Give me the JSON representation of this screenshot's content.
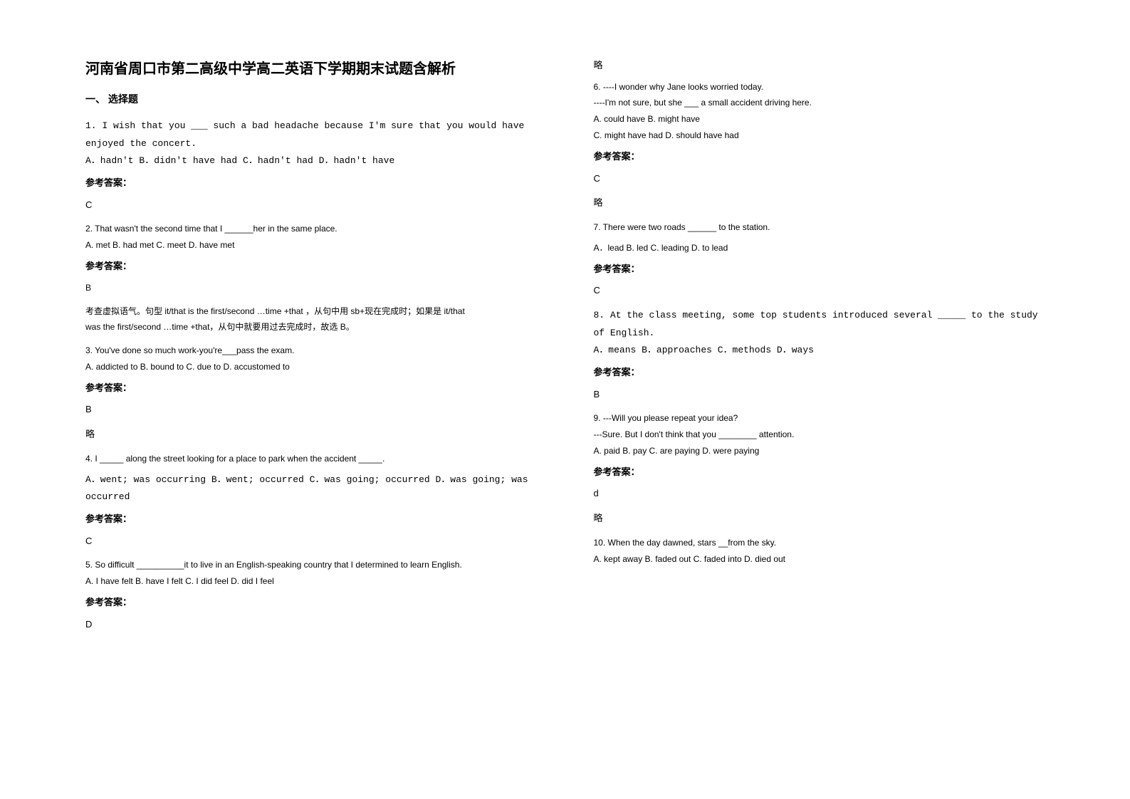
{
  "title": "河南省周口市第二高级中学高二英语下学期期末试题含解析",
  "section1_heading": "一、 选择题",
  "answer_label": "参考答案：",
  "略": "略",
  "left": {
    "q1": {
      "text": "1. I wish that you ___ such a bad headache because I'm sure that you would have enjoyed the concert.",
      "opts": "A．hadn't              B．didn't have had       C．hadn't had          D．hadn't have",
      "ans": "C"
    },
    "q2": {
      "text": "2. That wasn't the second time that I ______her in the same place.",
      "opts": "A. met   B. had met   C. meet   D. have met",
      "ans": "B",
      "note1": "考查虚拟语气。句型 it/that is the first/second …time +that ，从句中用 sb+现在完成时；如果是 it/that",
      "note2": "was the first/second …time +that，从句中就要用过去完成时，故选 B。"
    },
    "q3": {
      "text": "3. You've done so much work-you're___pass the exam.",
      "opts": "  A. addicted to    B. bound to    C. due to    D. accustomed to",
      "ans": "B",
      "note": "略"
    },
    "q4": {
      "text": "4. I _____ along the street looking for a place to park when the accident _____.",
      "opts": "A．went; was occurring   B．went; occurred            C．was going; occurred   D．was going; was occurred",
      "ans": "C"
    },
    "q5": {
      "text": "5. So difficult __________it to live in an English-speaking country that I determined to learn English.",
      "opts": "   A. I have felt            B. have I felt              C. I did feel              D. did I feel",
      "ans": "D"
    }
  },
  "right": {
    "top_note": "略",
    "q6": {
      "text": "6. ----I wonder why Jane looks worried today.",
      "text2": "  ----I'm not sure, but she ___ a small accident driving here.",
      "optsA": "   A. could have               B. might have",
      "optsB": "    C. might have had               D. should have had",
      "ans": "C",
      "note": "略"
    },
    "q7": {
      "text": "7. There were two roads ______ to the station.",
      "opts": "A．lead          B. led          C. leading       D. to lead",
      "ans": "C"
    },
    "q8": {
      "text": " 8.  At the class meeting, some top students introduced several _____ to the study of English.",
      "opts": "   A．means                     B．approaches                    C．methods             D．ways",
      "ans": "B"
    },
    "q9": {
      "text": "9. ---Will you please repeat your idea?",
      "text2": "   ---Sure. But I don't think that you ________ attention.",
      "opts": " A. paid            B. pay           C. are paying             D. were paying",
      "ans": "d",
      "note": "略"
    },
    "q10": {
      "text": "10. When the day dawned, stars __from the sky.",
      "opts": "A. kept away   B. faded out   C. faded into   D. died out"
    }
  }
}
